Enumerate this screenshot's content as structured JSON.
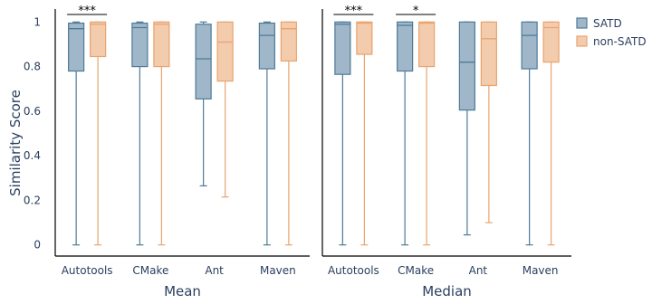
{
  "chart_data": {
    "type": "box",
    "ylabel": "Similarity Score",
    "ylim": [
      -0.05,
      1.05
    ],
    "yticks": [
      0,
      0.2,
      0.4,
      0.6,
      0.8,
      1
    ],
    "ytick_labels": [
      "0",
      "0.2",
      "0.4",
      "0.6",
      "0.8",
      "1"
    ],
    "categories": [
      "Autotools",
      "CMake",
      "Ant",
      "Maven"
    ],
    "legend": {
      "position": "top-right",
      "entries": [
        {
          "name": "SATD",
          "color": "#4e7b98"
        },
        {
          "name": "non-SATD",
          "color": "#e9a46f"
        }
      ]
    },
    "panels": [
      {
        "xlabel": "Mean",
        "series": [
          {
            "name": "SATD",
            "color": "#4e7b98",
            "fill": "#9fb7c8",
            "boxes": [
              {
                "category": "Autotools",
                "min": 0,
                "q1": 0.78,
                "median": 0.97,
                "q3": 0.995,
                "max": 1
              },
              {
                "category": "CMake",
                "min": 0,
                "q1": 0.8,
                "median": 0.975,
                "q3": 0.995,
                "max": 1
              },
              {
                "category": "Ant",
                "min": 0.265,
                "q1": 0.655,
                "median": 0.835,
                "q3": 0.99,
                "max": 1
              },
              {
                "category": "Maven",
                "min": 0,
                "q1": 0.79,
                "median": 0.94,
                "q3": 0.995,
                "max": 1
              }
            ]
          },
          {
            "name": "non-SATD",
            "color": "#e9a46f",
            "fill": "#f3cbad",
            "boxes": [
              {
                "category": "Autotools",
                "min": 0,
                "q1": 0.845,
                "median": 0.99,
                "q3": 1,
                "max": 1
              },
              {
                "category": "CMake",
                "min": 0,
                "q1": 0.8,
                "median": 0.99,
                "q3": 1,
                "max": 1
              },
              {
                "category": "Ant",
                "min": 0.215,
                "q1": 0.735,
                "median": 0.91,
                "q3": 1,
                "max": 1
              },
              {
                "category": "Maven",
                "min": 0,
                "q1": 0.825,
                "median": 0.97,
                "q3": 1,
                "max": 1
              }
            ]
          }
        ],
        "significance": [
          {
            "category": "Autotools",
            "label": "***"
          }
        ]
      },
      {
        "xlabel": "Median",
        "series": [
          {
            "name": "SATD",
            "color": "#4e7b98",
            "fill": "#9fb7c8",
            "boxes": [
              {
                "category": "Autotools",
                "min": 0,
                "q1": 0.765,
                "median": 0.99,
                "q3": 1,
                "max": 1
              },
              {
                "category": "CMake",
                "min": 0,
                "q1": 0.78,
                "median": 0.985,
                "q3": 1,
                "max": 1
              },
              {
                "category": "Ant",
                "min": 0.045,
                "q1": 0.605,
                "median": 0.82,
                "q3": 1,
                "max": 1
              },
              {
                "category": "Maven",
                "min": 0,
                "q1": 0.79,
                "median": 0.94,
                "q3": 1,
                "max": 1
              }
            ]
          },
          {
            "name": "non-SATD",
            "color": "#e9a46f",
            "fill": "#f3cbad",
            "boxes": [
              {
                "category": "Autotools",
                "min": 0,
                "q1": 0.855,
                "median": 0.995,
                "q3": 1,
                "max": 1
              },
              {
                "category": "CMake",
                "min": 0,
                "q1": 0.8,
                "median": 0.995,
                "q3": 1,
                "max": 1
              },
              {
                "category": "Ant",
                "min": 0.1,
                "q1": 0.715,
                "median": 0.925,
                "q3": 1,
                "max": 1
              },
              {
                "category": "Maven",
                "min": 0,
                "q1": 0.82,
                "median": 0.975,
                "q3": 1,
                "max": 1
              }
            ]
          }
        ],
        "significance": [
          {
            "category": "Autotools",
            "label": "***"
          },
          {
            "category": "CMake",
            "label": "*"
          }
        ]
      }
    ]
  }
}
